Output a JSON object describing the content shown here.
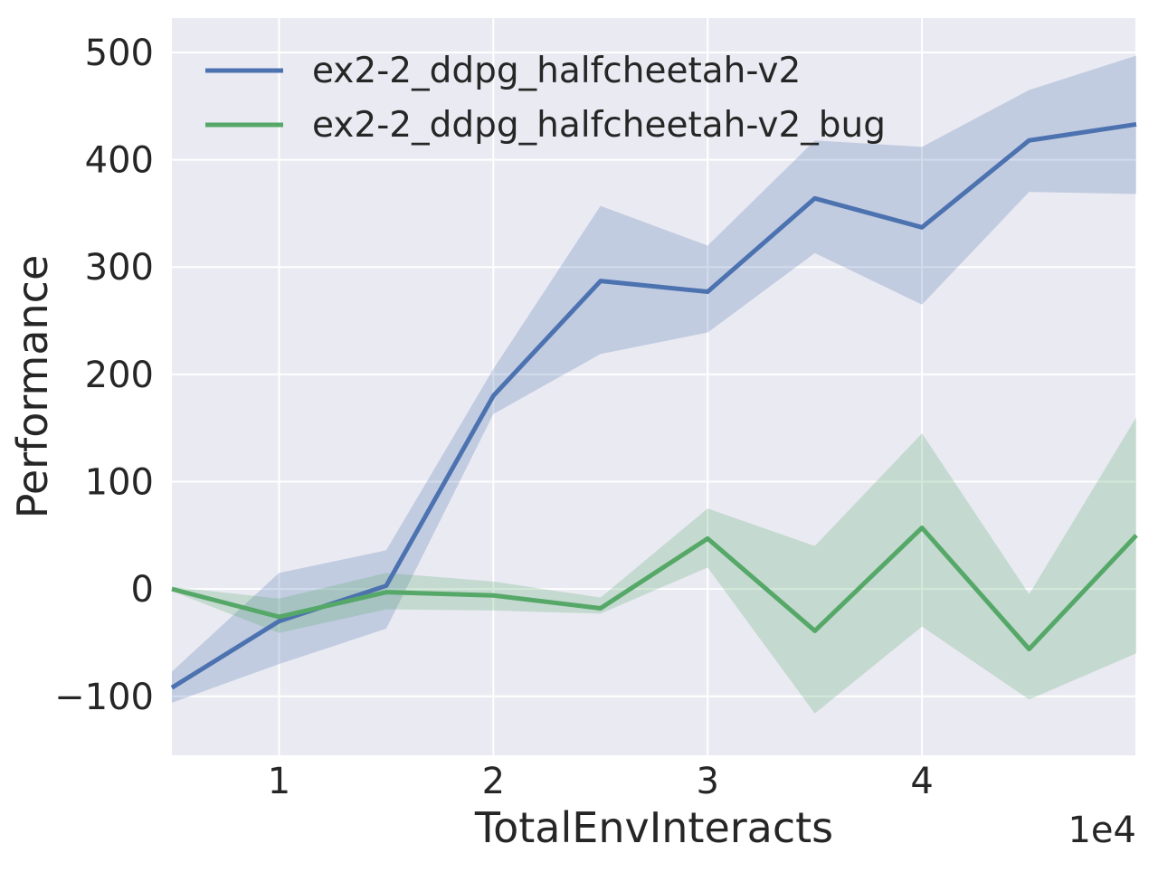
{
  "chart_data": {
    "type": "line",
    "title": "",
    "xlabel": "TotalEnvInteracts",
    "ylabel": "Performance",
    "x_offset_label": "1e4",
    "x_unit_multiplier": 10000,
    "grid": true,
    "legend_position": "upper-left",
    "plot_background": "#eaeaf2",
    "grid_color": "#ffffff",
    "text_color": "#262626",
    "xlim": [
      0.5,
      5.0
    ],
    "ylim": [
      -155,
      532
    ],
    "x": [
      0.5,
      1.0,
      1.5,
      2.0,
      2.5,
      3.0,
      3.5,
      4.0,
      4.5,
      5.0
    ],
    "xticks": [
      {
        "v": 1,
        "label": "1"
      },
      {
        "v": 2,
        "label": "2"
      },
      {
        "v": 3,
        "label": "3"
      },
      {
        "v": 4,
        "label": "4"
      },
      {
        "v": 5,
        "label": ""
      }
    ],
    "yticks": [
      {
        "v": 500,
        "label": "500"
      },
      {
        "v": 400,
        "label": "400"
      },
      {
        "v": 300,
        "label": "300"
      },
      {
        "v": 200,
        "label": "200"
      },
      {
        "v": 100,
        "label": "100"
      },
      {
        "v": 0,
        "label": "0"
      },
      {
        "v": -100,
        "label": "−100"
      }
    ],
    "series": [
      {
        "name": "ex2-2_ddpg_halfcheetah-v2",
        "color": "#4c72b0",
        "band_alpha": 0.25,
        "values": [
          -92,
          -30,
          3,
          180,
          287,
          277,
          364,
          337,
          418,
          433
        ],
        "band_lower": [
          -106,
          -70,
          -37,
          163,
          219,
          239,
          313,
          265,
          370,
          368
        ],
        "band_upper": [
          -77,
          15,
          36,
          205,
          357,
          320,
          418,
          412,
          465,
          497
        ]
      },
      {
        "name": "ex2-2_ddpg_halfcheetah-v2_bug",
        "color": "#55a868",
        "band_alpha": 0.25,
        "values": [
          0,
          -26,
          -3,
          -6,
          -18,
          47,
          -39,
          57,
          -56,
          50
        ],
        "band_lower": [
          -2,
          -41,
          -19,
          -20,
          -23,
          20,
          -116,
          -35,
          -103,
          -60
        ],
        "band_upper": [
          2,
          -9,
          15,
          7,
          -8,
          75,
          40,
          145,
          -5,
          160
        ]
      }
    ]
  }
}
